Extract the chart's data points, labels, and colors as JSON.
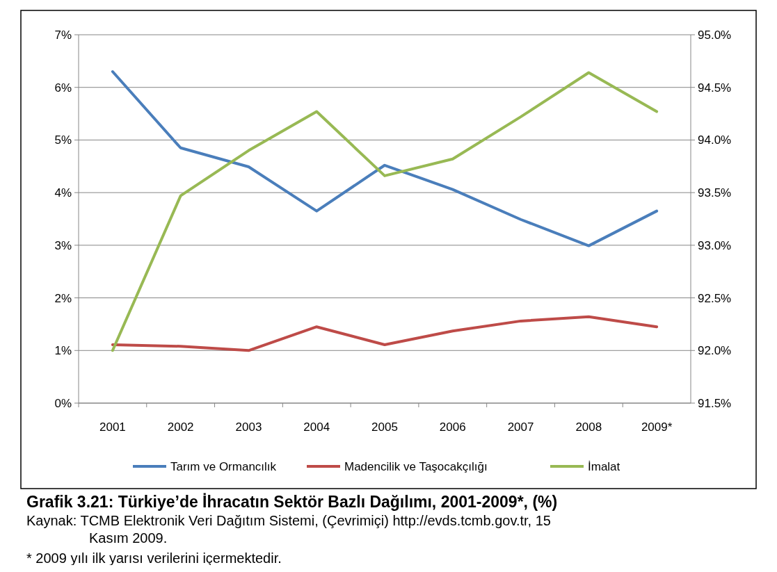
{
  "chart_data": {
    "type": "line",
    "title": "Grafik 3.21: Türkiye’de İhracatın Sektör Bazlı Dağılımı, 2001-2009*, (%)",
    "categories": [
      "2001",
      "2002",
      "2003",
      "2004",
      "2005",
      "2006",
      "2007",
      "2008",
      "2009*"
    ],
    "series": [
      {
        "name": "Tarım  ve Ormancılık",
        "color": "#4a7ebb",
        "values": [
          6.3,
          4.85,
          4.49,
          3.65,
          4.52,
          4.06,
          3.49,
          2.99,
          3.65
        ]
      },
      {
        "name": "Madencilik ve Taşocakçılığı",
        "color": "#be4b48",
        "values": [
          1.11,
          1.08,
          1.0,
          1.45,
          1.11,
          1.37,
          1.56,
          1.64,
          1.45
        ]
      },
      {
        "name": "İmalat",
        "color": "#98b954",
        "axis": "y2",
        "values": [
          92.0,
          93.47,
          93.9,
          94.27,
          93.66,
          93.82,
          94.22,
          94.64,
          94.27
        ]
      }
    ],
    "ylim": [
      0,
      7
    ],
    "yticks": [
      {
        "value": 0,
        "label": "0%"
      },
      {
        "value": 1,
        "label": "1%"
      },
      {
        "value": 2,
        "label": "2%"
      },
      {
        "value": 3,
        "label": "3%"
      },
      {
        "value": 4,
        "label": "4%"
      },
      {
        "value": 5,
        "label": "5%"
      },
      {
        "value": 6,
        "label": "6%"
      },
      {
        "value": 7,
        "label": "7%"
      }
    ],
    "y2lim": [
      91.5,
      95
    ],
    "y2ticks": [
      {
        "value": 91.5,
        "label": "91.5%"
      },
      {
        "value": 92,
        "label": "92.0%"
      },
      {
        "value": 92.5,
        "label": "92.5%"
      },
      {
        "value": 93,
        "label": "93.0%"
      },
      {
        "value": 93.5,
        "label": "93.5%"
      },
      {
        "value": 94,
        "label": "94.0%"
      },
      {
        "value": 94.5,
        "label": "94.5%"
      },
      {
        "value": 95,
        "label": "95.0%"
      }
    ],
    "grid": "y",
    "legend": "bottom",
    "marker": "none",
    "line_style": "solid",
    "annotations": [
      "Kaynak: TCMB Elektronik Veri Dağıtım Sistemi, (Çevrimiçi) http://evds.tcmb.gov.tr, 15 Kasım 2009.",
      "* 2009 yılı ilk yarısı verilerini içermektedir."
    ]
  }
}
